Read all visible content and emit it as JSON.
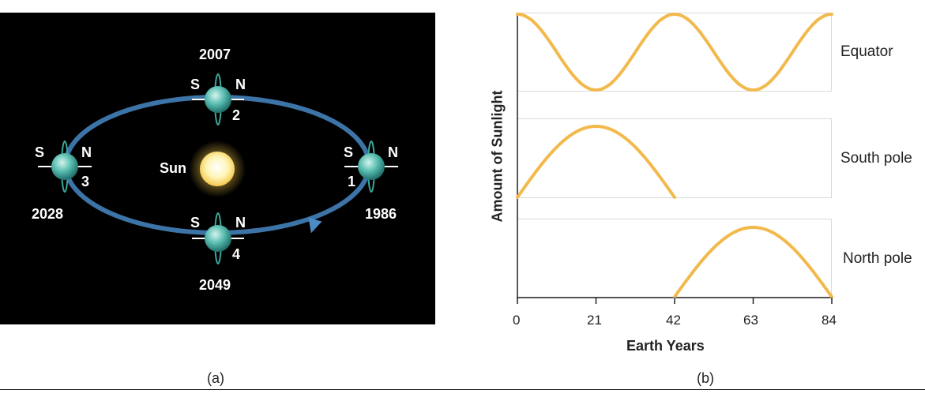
{
  "panel_a": {
    "caption": "(a)",
    "sun_label": "Sun",
    "positions": [
      {
        "year": "1986",
        "number": "1",
        "south": "S",
        "north": "N"
      },
      {
        "year": "2007",
        "number": "2",
        "south": "S",
        "north": "N"
      },
      {
        "year": "2028",
        "number": "3",
        "south": "S",
        "north": "N"
      },
      {
        "year": "2049",
        "number": "4",
        "south": "S",
        "north": "N"
      }
    ],
    "colors": {
      "orbit": "#3a6fa3",
      "planet": "#3aa79a",
      "sun": "#fff3b0",
      "background": "#000000"
    }
  },
  "panel_b": {
    "caption": "(b)",
    "chart_data": {
      "type": "line",
      "xlabel": "Earth Years",
      "ylabel": "Amount of Sunlight",
      "xticks": [
        "0",
        "21",
        "42",
        "63",
        "84"
      ],
      "xlim": [
        0,
        84
      ],
      "series": [
        {
          "name": "Equator",
          "x": [
            0,
            10.5,
            21,
            31.5,
            42,
            52.5,
            63,
            73.5,
            84
          ],
          "y": [
            1,
            0.5,
            0,
            0.5,
            1,
            0.5,
            0,
            0.5,
            1
          ]
        },
        {
          "name": "South pole",
          "x": [
            0,
            10.5,
            21,
            31.5,
            42
          ],
          "y": [
            0,
            0.71,
            1,
            0.71,
            0
          ]
        },
        {
          "name": "North pole",
          "x": [
            42,
            52.5,
            63,
            73.5,
            84
          ],
          "y": [
            0,
            0.71,
            1,
            0.71,
            0
          ]
        }
      ],
      "line_color": "#f2b94c"
    }
  }
}
